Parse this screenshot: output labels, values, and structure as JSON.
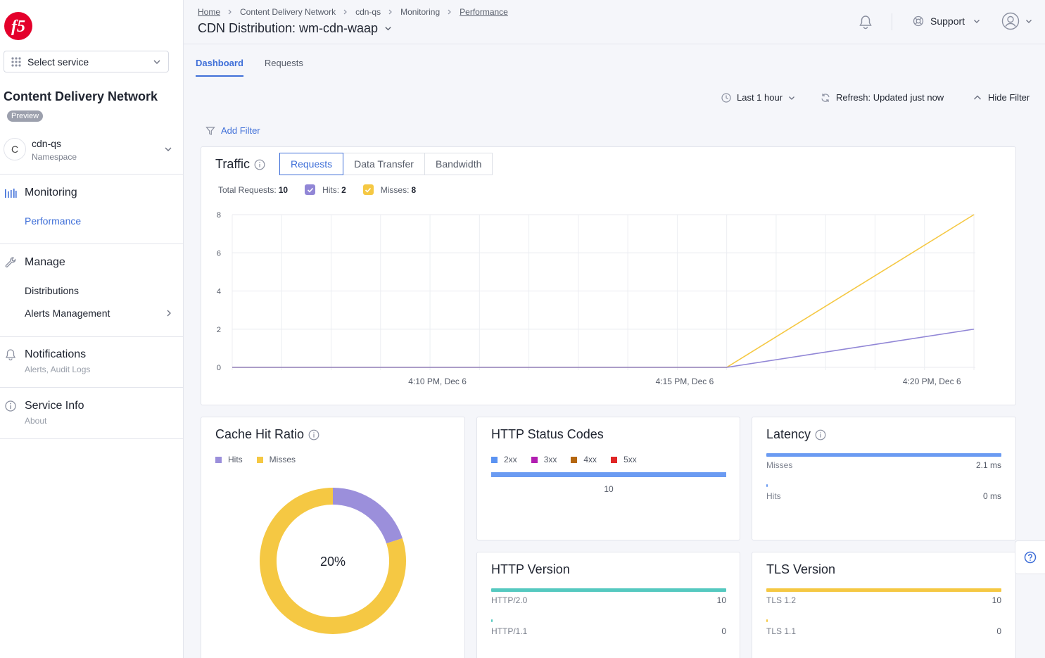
{
  "brand": {
    "logo_text": "f5"
  },
  "sidebar": {
    "service_select": {
      "label": "Select service"
    },
    "app_title": "Content Delivery Network",
    "app_badge": "Preview",
    "namespace": {
      "avatar": "C",
      "name": "cdn-qs",
      "label": "Namespace"
    },
    "sections": [
      {
        "title": "Monitoring",
        "icon": "bar-chart-icon",
        "items": [
          {
            "label": "Performance",
            "active": true
          }
        ]
      },
      {
        "title": "Manage",
        "icon": "wrench-icon",
        "items": [
          {
            "label": "Distributions"
          },
          {
            "label": "Alerts Management"
          }
        ]
      },
      {
        "title": "Notifications",
        "icon": "bell-icon",
        "subtitle": "Alerts, Audit Logs"
      },
      {
        "title": "Service Info",
        "icon": "info-icon",
        "subtitle": "About"
      }
    ]
  },
  "header": {
    "breadcrumb": [
      "Home",
      "Content Delivery Network",
      "cdn-qs",
      "Monitoring",
      "Performance"
    ],
    "title": "CDN Distribution: wm-cdn-waap",
    "support_label": "Support"
  },
  "tabs": [
    {
      "label": "Dashboard",
      "active": true
    },
    {
      "label": "Requests",
      "active": false
    }
  ],
  "toolbar": {
    "time_range": "Last 1 hour",
    "refresh": "Refresh: Updated just now",
    "hide_filter": "Hide Filter",
    "add_filter": "Add Filter"
  },
  "traffic": {
    "title": "Traffic",
    "segments": [
      "Requests",
      "Data Transfer",
      "Bandwidth"
    ],
    "active_segment": "Requests",
    "total_label": "Total Requests:",
    "total_value": "10",
    "hits_label": "Hits:",
    "hits_value": "2",
    "misses_label": "Misses:",
    "misses_value": "8"
  },
  "chart_data": [
    {
      "type": "line",
      "title": "Traffic",
      "x_ticks": [
        "4:10 PM, Dec 6",
        "4:15 PM, Dec 6",
        "4:20 PM, Dec 6"
      ],
      "y_ticks": [
        "0",
        "2",
        "4",
        "6",
        "8"
      ],
      "ylim": [
        0,
        8
      ],
      "x_minutes": [
        0,
        1,
        2,
        3,
        4,
        5,
        6,
        7,
        8,
        9,
        10,
        11,
        12,
        13,
        14,
        15
      ],
      "series": [
        {
          "name": "Hits",
          "color": "#9186d6",
          "values": [
            0,
            0,
            0,
            0,
            0,
            0,
            0,
            0,
            0,
            0,
            0,
            0,
            0,
            0,
            0,
            2
          ]
        },
        {
          "name": "Misses",
          "color": "#f5c843",
          "values": [
            0,
            0,
            0,
            0,
            0,
            0,
            0,
            0,
            0,
            0,
            0,
            0,
            0,
            0,
            0,
            8
          ]
        }
      ],
      "x_tick_minute": [
        4.15,
        9.15,
        14.15
      ]
    },
    {
      "type": "pie",
      "title": "Cache Hit Ratio",
      "center_label": "20%",
      "categories": [
        "Hits",
        "Misses"
      ],
      "values": [
        2,
        8
      ],
      "colors": [
        "#9b8fdb",
        "#f5c843"
      ]
    }
  ],
  "cache": {
    "title": "Cache Hit Ratio",
    "legend": [
      {
        "label": "Hits",
        "color": "#9b8fdb"
      },
      {
        "label": "Misses",
        "color": "#f5c843"
      }
    ]
  },
  "status_codes": {
    "title": "HTTP Status Codes",
    "legend": [
      {
        "label": "2xx",
        "color": "#5b93f2"
      },
      {
        "label": "3xx",
        "color": "#b21eb1"
      },
      {
        "label": "4xx",
        "color": "#b56710"
      },
      {
        "label": "5xx",
        "color": "#e02626"
      }
    ],
    "bar_value": "10",
    "bar_color": "#6b9bf2"
  },
  "latency": {
    "title": "Latency",
    "rows": [
      {
        "label": "Misses",
        "value": "2.1 ms",
        "fraction": 1.0
      },
      {
        "label": "Hits",
        "value": "0 ms",
        "fraction": 0
      }
    ],
    "color": "#6b9bf2"
  },
  "http_version": {
    "title": "HTTP Version",
    "rows": [
      {
        "label": "HTTP/2.0",
        "value": "10",
        "fraction": 1.0
      },
      {
        "label": "HTTP/1.1",
        "value": "0",
        "fraction": 0
      }
    ],
    "color": "#55c9c0"
  },
  "tls_version": {
    "title": "TLS Version",
    "rows": [
      {
        "label": "TLS 1.2",
        "value": "10",
        "fraction": 1.0
      },
      {
        "label": "TLS 1.1",
        "value": "0",
        "fraction": 0
      }
    ],
    "color": "#f5c843"
  }
}
